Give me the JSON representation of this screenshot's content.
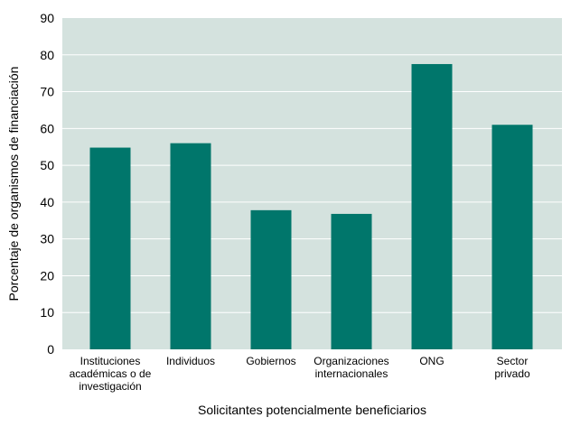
{
  "chart_data": {
    "type": "bar",
    "title": "",
    "xlabel": "Solicitantes potencialmente beneficiarios",
    "ylabel": "Porcentaje de organismos de financiación",
    "ylim": [
      0,
      90
    ],
    "yticks": [
      0,
      10,
      20,
      30,
      40,
      50,
      60,
      70,
      80,
      90
    ],
    "grid": true,
    "legend": "none",
    "categories": [
      [
        "Instituciones",
        "académicas o de",
        "investigación"
      ],
      [
        "Individuos"
      ],
      [
        "Gobiernos"
      ],
      [
        "Organizaciones",
        "internacionales"
      ],
      [
        "ONG"
      ],
      [
        "Sector",
        "privado"
      ]
    ],
    "values": [
      54.8,
      56.0,
      37.8,
      36.8,
      77.5,
      61.0
    ],
    "colors": {
      "plot_background": "#d4e2de",
      "bar": "#00766b",
      "gridline": "#ffffff"
    }
  }
}
